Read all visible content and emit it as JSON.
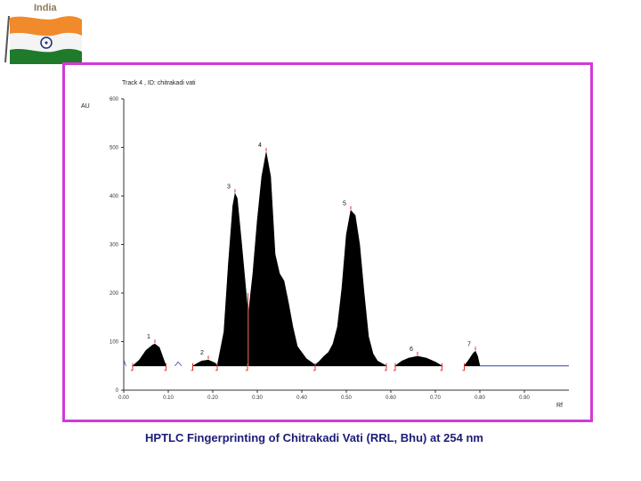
{
  "header": {
    "country_label": "India"
  },
  "caption": "HPTLC Fingerprinting of  Chitrakadi Vati (RRL, Bhu) at  254 nm",
  "chart_data": {
    "type": "area",
    "title": "Track 4 , ID: chitrakadi vati",
    "ylabel": "AU",
    "xlabel": "Rf",
    "xlim": [
      0.0,
      1.0
    ],
    "ylim": [
      0,
      600
    ],
    "xticks": [
      0.0,
      0.1,
      0.2,
      0.3,
      0.4,
      0.5,
      0.6,
      0.7,
      0.8,
      0.9
    ],
    "xtick_labels": [
      "0.00",
      "0.10",
      "0.20",
      "0.30",
      "0.40",
      "0.50",
      "0.60",
      "0.70",
      "0.80",
      "0.90"
    ],
    "yticks": [
      0,
      100,
      200,
      300,
      400,
      500,
      600
    ],
    "baseline": 50,
    "peaks": [
      {
        "label": "1",
        "rf": 0.07,
        "au": 95
      },
      {
        "label": "2",
        "rf": 0.19,
        "au": 62
      },
      {
        "label": "3",
        "rf": 0.25,
        "au": 405
      },
      {
        "label": "4",
        "rf": 0.32,
        "au": 490
      },
      {
        "label": "5",
        "rf": 0.51,
        "au": 370
      },
      {
        "label": "6",
        "rf": 0.66,
        "au": 70
      },
      {
        "label": "7",
        "rf": 0.79,
        "au": 80
      }
    ],
    "colors": {
      "fill": "#000000",
      "baseline_trace": "#3344aa",
      "markers": "#e0302a",
      "frame": "#d13ad6"
    }
  }
}
